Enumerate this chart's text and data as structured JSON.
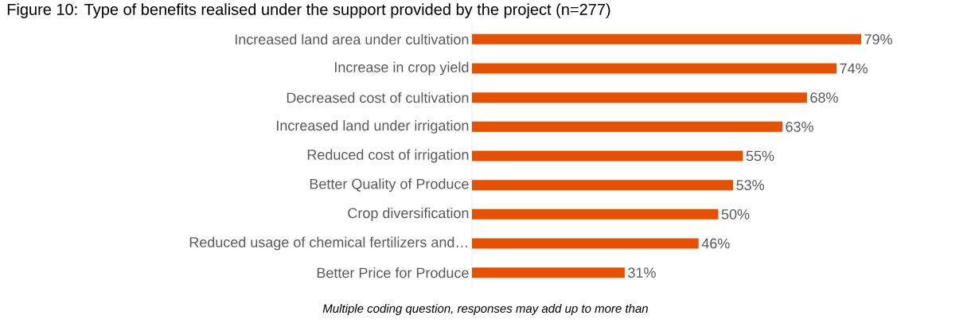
{
  "chart_data": {
    "type": "bar",
    "orientation": "horizontal",
    "title": "Figure 10: Type of benefits realised under the support provided by the project (n=277)",
    "categories": [
      "Increased land area under cultivation",
      "Increase in crop yield",
      "Decreased cost of cultivation",
      "Increased land under irrigation",
      "Reduced cost of irrigation",
      "Better Quality of Produce",
      "Crop diversification",
      "Reduced usage of chemical fertilizers and…",
      "Better Price for Produce"
    ],
    "values": [
      79,
      74,
      68,
      63,
      55,
      53,
      50,
      46,
      31
    ],
    "value_labels": [
      "79%",
      "74%",
      "68%",
      "63%",
      "55%",
      "53%",
      "50%",
      "46%",
      "31%"
    ],
    "color": "#e65100",
    "annotations": [
      "Multiple coding question, responses may add up to more than"
    ]
  }
}
